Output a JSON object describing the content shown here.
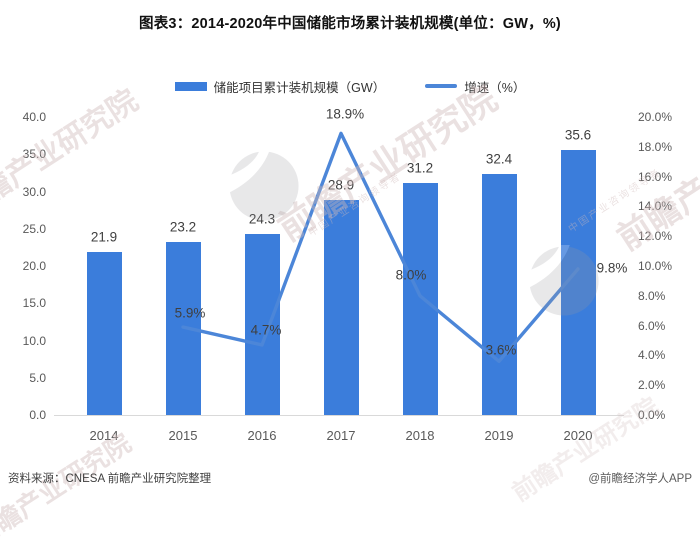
{
  "title": "图表3：2014-2020年中国储能市场累计装机规模(单位：GW，%)",
  "legend": {
    "bar_label": "储能项目累计装机规模（GW）",
    "line_label": "增速（%）"
  },
  "footer": {
    "source": "资料来源：CNESA 前瞻产业研究院整理",
    "credit": "@前瞻经济学人APP"
  },
  "watermark": {
    "text": "前瞻产业研究院",
    "subtext": "中国产业咨询领导者"
  },
  "colors": {
    "bar": "#3B7DDB",
    "line": "#4C86D8",
    "label": "#3f3f3f",
    "axis_line": "#d9d9d9"
  },
  "chart_data": {
    "type": "bar",
    "title": "图表3：2014-2020年中国储能市场累计装机规模(单位：GW，%)",
    "categories": [
      "2014",
      "2015",
      "2016",
      "2017",
      "2018",
      "2019",
      "2020"
    ],
    "series": [
      {
        "name": "储能项目累计装机规模（GW）",
        "type": "bar",
        "axis": "left",
        "values": [
          21.9,
          23.2,
          24.3,
          28.9,
          31.2,
          32.4,
          35.6
        ],
        "labels": [
          "21.9",
          "23.2",
          "24.3",
          "28.9",
          "31.2",
          "32.4",
          "35.6"
        ]
      },
      {
        "name": "增速（%）",
        "type": "line",
        "axis": "right",
        "values": [
          null,
          5.9,
          4.7,
          18.9,
          8.0,
          3.6,
          9.8
        ],
        "labels": [
          null,
          "5.9%",
          "4.7%",
          "18.9%",
          "8.0%",
          "3.6%",
          "9.8%"
        ],
        "label_offsets": [
          null,
          [
            7,
            -14
          ],
          [
            4,
            -15
          ],
          [
            4,
            -19
          ],
          [
            -9,
            -21
          ],
          [
            2,
            -11
          ],
          [
            34,
            -1
          ]
        ]
      }
    ],
    "left_axis": {
      "min": 0,
      "max": 40,
      "step": 5,
      "tick_labels": [
        "0.0",
        "5.0",
        "10.0",
        "15.0",
        "20.0",
        "25.0",
        "30.0",
        "35.0",
        "40.0"
      ]
    },
    "right_axis": {
      "min": 0,
      "max": 20,
      "step": 2,
      "tick_labels": [
        "0.0%",
        "2.0%",
        "4.0%",
        "6.0%",
        "8.0%",
        "10.0%",
        "12.0%",
        "14.0%",
        "16.0%",
        "18.0%",
        "20.0%"
      ]
    },
    "grid": false,
    "legend_position": "top"
  }
}
